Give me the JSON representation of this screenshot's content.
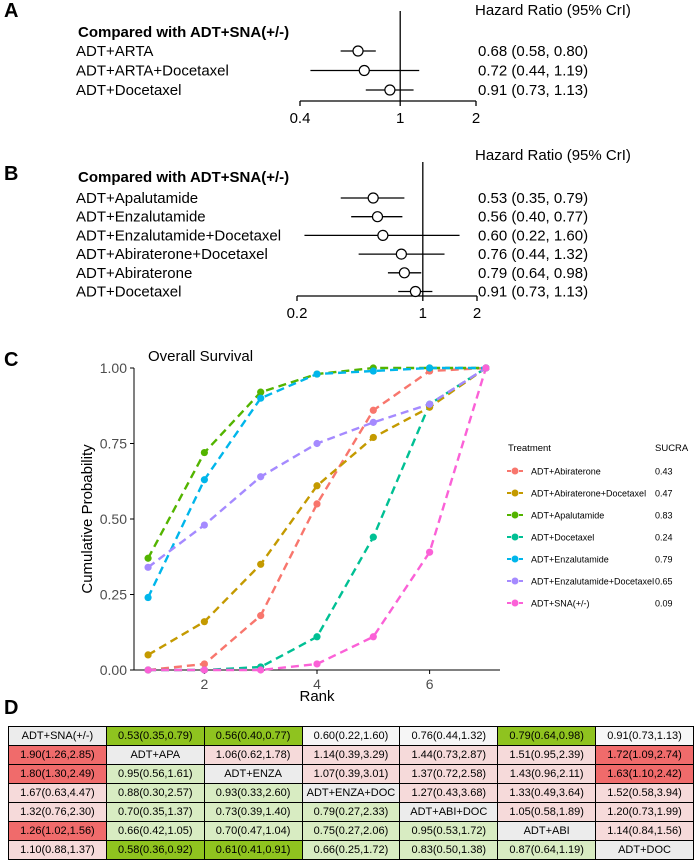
{
  "colors": {
    "diag": "#ececec",
    "green_strong": "#8fc31f",
    "green_light": "#d8ecc2",
    "red_strong": "#f06b6b",
    "red_light": "#f6dada",
    "neutral": "#f6f6f6"
  },
  "panels": {
    "A": "A",
    "B": "B",
    "C": "C",
    "D": "D"
  },
  "forest_a": {
    "heading": "Compared with ADT+SNA(+/-)",
    "col_title": "Hazard Ratio (95% CrI)",
    "rows": [
      {
        "label": "ADT+ARTA",
        "hr": 0.68,
        "lo": 0.58,
        "hi": 0.8,
        "text": "0.68 (0.58, 0.80)"
      },
      {
        "label": "ADT+ARTA+Docetaxel",
        "hr": 0.72,
        "lo": 0.44,
        "hi": 1.19,
        "text": "0.72 (0.44, 1.19)"
      },
      {
        "label": "ADT+Docetaxel",
        "hr": 0.91,
        "lo": 0.73,
        "hi": 1.13,
        "text": "0.91 (0.73, 1.13)"
      }
    ],
    "ticks": [
      {
        "v": 0.4,
        "label": "0.4"
      },
      {
        "v": 1,
        "label": "1"
      },
      {
        "v": 2,
        "label": "2"
      }
    ],
    "xmin": 0.4,
    "xmax": 2
  },
  "forest_b": {
    "heading": "Compared with ADT+SNA(+/-)",
    "col_title": "Hazard Ratio (95% CrI)",
    "rows": [
      {
        "label": "ADT+Apalutamide",
        "hr": 0.53,
        "lo": 0.35,
        "hi": 0.79,
        "text": "0.53 (0.35, 0.79)"
      },
      {
        "label": "ADT+Enzalutamide",
        "hr": 0.56,
        "lo": 0.4,
        "hi": 0.77,
        "text": "0.56 (0.40, 0.77)"
      },
      {
        "label": "ADT+Enzalutamide+Docetaxel",
        "hr": 0.6,
        "lo": 0.22,
        "hi": 1.6,
        "text": "0.60 (0.22, 1.60)"
      },
      {
        "label": "ADT+Abiraterone+Docetaxel",
        "hr": 0.76,
        "lo": 0.44,
        "hi": 1.32,
        "text": "0.76 (0.44, 1.32)"
      },
      {
        "label": "ADT+Abiraterone",
        "hr": 0.79,
        "lo": 0.64,
        "hi": 0.98,
        "text": "0.79 (0.64, 0.98)"
      },
      {
        "label": "ADT+Docetaxel",
        "hr": 0.91,
        "lo": 0.73,
        "hi": 1.13,
        "text": "0.91 (0.73, 1.13)"
      }
    ],
    "ticks": [
      {
        "v": 0.2,
        "label": "0.2"
      },
      {
        "v": 1,
        "label": "1"
      },
      {
        "v": 2,
        "label": "2"
      }
    ],
    "xmin": 0.2,
    "xmax": 2
  },
  "chart_data": {
    "type": "line",
    "title": "Overall Survival",
    "xlabel": "Rank",
    "ylabel": "Cumulative Probability",
    "xlim": [
      0.75,
      7.25
    ],
    "ylim": [
      0,
      1
    ],
    "x": [
      1,
      2,
      3,
      4,
      5,
      6,
      7
    ],
    "xticks": [
      2,
      4,
      6
    ],
    "yticks": [
      {
        "v": 0,
        "label": "0.00"
      },
      {
        "v": 0.25,
        "label": "0.25"
      },
      {
        "v": 0.5,
        "label": "0.50"
      },
      {
        "v": 0.75,
        "label": "0.75"
      },
      {
        "v": 1,
        "label": "1.00"
      }
    ],
    "legend_title": "Treatment",
    "sucra_title": "SUCRA",
    "series": [
      {
        "name": "ADT+Abiraterone",
        "color": "#f8766d",
        "sucra": "0.43",
        "values": [
          0.0,
          0.02,
          0.18,
          0.55,
          0.86,
          0.99,
          1.0
        ]
      },
      {
        "name": "ADT+Abiraterone+Docetaxel",
        "color": "#c49a00",
        "sucra": "0.47",
        "values": [
          0.05,
          0.16,
          0.35,
          0.61,
          0.77,
          0.87,
          1.0
        ]
      },
      {
        "name": "ADT+Apalutamide",
        "color": "#53b400",
        "sucra": "0.83",
        "values": [
          0.37,
          0.72,
          0.92,
          0.98,
          1.0,
          1.0,
          1.0
        ]
      },
      {
        "name": "ADT+Docetaxel",
        "color": "#00c094",
        "sucra": "0.24",
        "values": [
          0.0,
          0.0,
          0.01,
          0.11,
          0.44,
          0.88,
          1.0
        ]
      },
      {
        "name": "ADT+Enzalutamide",
        "color": "#00b6eb",
        "sucra": "0.79",
        "values": [
          0.24,
          0.63,
          0.9,
          0.98,
          0.99,
          1.0,
          1.0
        ]
      },
      {
        "name": "ADT+Enzalutamide+Docetaxel",
        "color": "#a58aff",
        "sucra": "0.65",
        "values": [
          0.34,
          0.48,
          0.64,
          0.75,
          0.82,
          0.88,
          1.0
        ]
      },
      {
        "name": "ADT+SNA(+/-)",
        "color": "#fb61d7",
        "sucra": "0.09",
        "values": [
          0.0,
          0.0,
          0.0,
          0.02,
          0.11,
          0.39,
          1.0
        ]
      }
    ]
  },
  "league_table": [
    [
      {
        "t": "ADT+SNA(+/-)",
        "c": "diag"
      },
      {
        "t": "0.53(0.35,0.79)",
        "c": "green_strong"
      },
      {
        "t": "0.56(0.40,0.77)",
        "c": "green_strong"
      },
      {
        "t": "0.60(0.22,1.60)",
        "c": "neutral"
      },
      {
        "t": "0.76(0.44,1.32)",
        "c": "neutral"
      },
      {
        "t": "0.79(0.64,0.98)",
        "c": "green_strong"
      },
      {
        "t": "0.91(0.73,1.13)",
        "c": "neutral"
      }
    ],
    [
      {
        "t": "1.90(1.26,2.85)",
        "c": "red_strong"
      },
      {
        "t": "ADT+APA",
        "c": "diag"
      },
      {
        "t": "1.06(0.62,1.78)",
        "c": "red_light"
      },
      {
        "t": "1.14(0.39,3.29)",
        "c": "red_light"
      },
      {
        "t": "1.44(0.73,2.87)",
        "c": "red_light"
      },
      {
        "t": "1.51(0.95,2.39)",
        "c": "red_light"
      },
      {
        "t": "1.72(1.09,2.74)",
        "c": "red_strong"
      }
    ],
    [
      {
        "t": "1.80(1.30,2.49)",
        "c": "red_strong"
      },
      {
        "t": "0.95(0.56,1.61)",
        "c": "green_light"
      },
      {
        "t": "ADT+ENZA",
        "c": "diag"
      },
      {
        "t": "1.07(0.39,3.01)",
        "c": "red_light"
      },
      {
        "t": "1.37(0.72,2.58)",
        "c": "red_light"
      },
      {
        "t": "1.43(0.96,2.11)",
        "c": "red_light"
      },
      {
        "t": "1.63(1.10,2.42)",
        "c": "red_strong"
      }
    ],
    [
      {
        "t": "1.67(0.63,4.47)",
        "c": "red_light"
      },
      {
        "t": "0.88(0.30,2.57)",
        "c": "green_light"
      },
      {
        "t": "0.93(0.33,2.60)",
        "c": "green_light"
      },
      {
        "t": "ADT+ENZA+DOC",
        "c": "diag"
      },
      {
        "t": "1.27(0.43,3.68)",
        "c": "red_light"
      },
      {
        "t": "1.33(0.49,3.64)",
        "c": "red_light"
      },
      {
        "t": "1.52(0.58,3.94)",
        "c": "red_light"
      }
    ],
    [
      {
        "t": "1.32(0.76,2.30)",
        "c": "red_light"
      },
      {
        "t": "0.70(0.35,1.37)",
        "c": "green_light"
      },
      {
        "t": "0.73(0.39,1.40)",
        "c": "green_light"
      },
      {
        "t": "0.79(0.27,2.33)",
        "c": "green_light"
      },
      {
        "t": "ADT+ABI+DOC",
        "c": "diag"
      },
      {
        "t": "1.05(0.58,1.89)",
        "c": "red_light"
      },
      {
        "t": "1.20(0.73,1.99)",
        "c": "red_light"
      }
    ],
    [
      {
        "t": "1.26(1.02,1.56)",
        "c": "red_strong"
      },
      {
        "t": "0.66(0.42,1.05)",
        "c": "green_light"
      },
      {
        "t": "0.70(0.47,1.04)",
        "c": "green_light"
      },
      {
        "t": "0.75(0.27,2.06)",
        "c": "green_light"
      },
      {
        "t": "0.95(0.53,1.72)",
        "c": "green_light"
      },
      {
        "t": "ADT+ABI",
        "c": "diag"
      },
      {
        "t": "1.14(0.84,1.56)",
        "c": "red_light"
      }
    ],
    [
      {
        "t": "1.10(0.88,1.37)",
        "c": "red_light"
      },
      {
        "t": "0.58(0.36,0.92)",
        "c": "green_strong"
      },
      {
        "t": "0.61(0.41,0.91)",
        "c": "green_strong"
      },
      {
        "t": "0.66(0.25,1.72)",
        "c": "green_light"
      },
      {
        "t": "0.83(0.50,1.38)",
        "c": "green_light"
      },
      {
        "t": "0.87(0.64,1.19)",
        "c": "green_light"
      },
      {
        "t": "ADT+DOC",
        "c": "diag"
      }
    ]
  ]
}
